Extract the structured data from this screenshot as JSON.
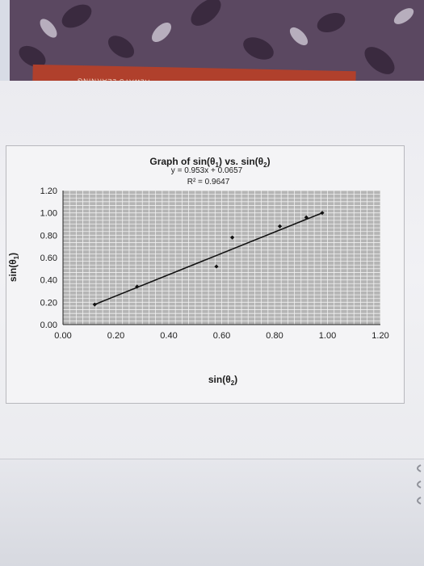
{
  "book": {
    "spine_text": "ALWAYS LEARNING"
  },
  "chart_data": {
    "type": "scatter",
    "title": "Graph of sin(θ1) vs. sin(θ2)",
    "title_parts": {
      "prefix": "Graph of sin(θ",
      "sub1": "1",
      "middle": ") vs. sin(θ",
      "sub2": "2",
      "suffix": ")"
    },
    "equation": "y = 0.953x + 0.0657",
    "r_squared": "R² = 0.9647",
    "xlabel": "sin(θ2)",
    "xlabel_parts": {
      "prefix": "sin(θ",
      "sub": "2",
      "suffix": ")"
    },
    "ylabel": "sin(θ1)",
    "ylabel_parts": {
      "prefix": "sin(θ",
      "sub": "1",
      "suffix": ")"
    },
    "xlim": [
      0,
      1.2
    ],
    "ylim": [
      0,
      1.2
    ],
    "x_ticks": [
      "0.00",
      "0.20",
      "0.40",
      "0.60",
      "0.80",
      "1.00",
      "1.20"
    ],
    "y_ticks": [
      "0.00",
      "0.20",
      "0.40",
      "0.60",
      "0.80",
      "1.00",
      "1.20"
    ],
    "grid": true,
    "plot_background": "#b5b5b5",
    "gridline_color": "#f2f2f2",
    "trendline": {
      "slope": 0.953,
      "intercept": 0.0657,
      "x_range": [
        0.12,
        0.98
      ]
    },
    "points": [
      {
        "x": 0.12,
        "y": 0.18
      },
      {
        "x": 0.28,
        "y": 0.34
      },
      {
        "x": 0.58,
        "y": 0.52
      },
      {
        "x": 0.64,
        "y": 0.78
      },
      {
        "x": 0.82,
        "y": 0.88
      },
      {
        "x": 0.92,
        "y": 0.96
      },
      {
        "x": 0.98,
        "y": 1.0
      }
    ]
  }
}
